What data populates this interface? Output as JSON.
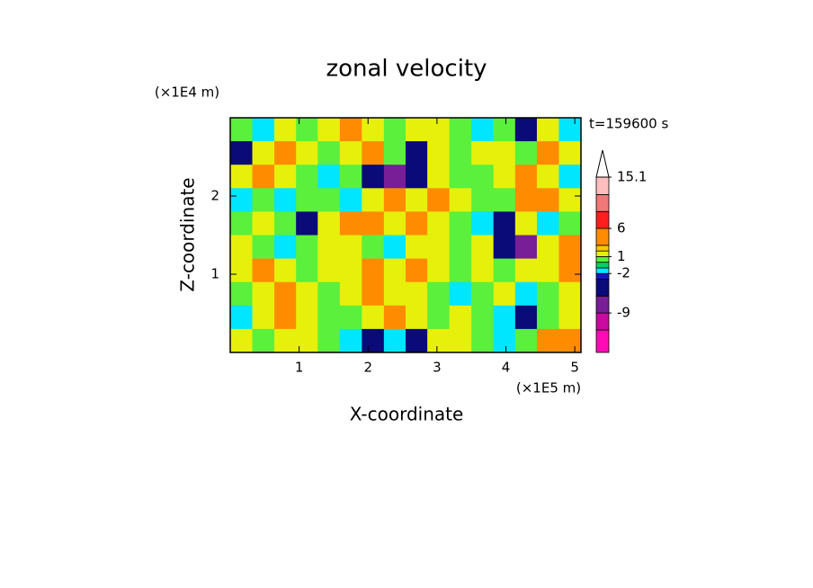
{
  "chart_data": {
    "type": "contour",
    "title": "zonal velocity",
    "x_label": "X-coordinate",
    "y_label": "Z-coordinate",
    "x_unit_label": "(×1E5 m)",
    "y_unit_label": "(×1E4 m)",
    "annotation": "t=159600 s",
    "x": [
      0.16,
      0.48,
      0.8,
      1.11,
      1.43,
      1.75,
      2.07,
      2.39,
      2.7,
      3.02,
      3.34,
      3.66,
      3.98,
      4.29,
      4.61,
      4.93
    ],
    "y": [
      2.85,
      2.55,
      2.25,
      1.95,
      1.65,
      1.35,
      1.05,
      0.75,
      0.45,
      0.15
    ],
    "z": [
      [
        0,
        -1.5,
        1.5,
        0,
        1.5,
        4,
        1.5,
        0,
        1.5,
        1.5,
        0,
        -1.5,
        0,
        -4,
        1.5,
        -1.5
      ],
      [
        -4,
        1.5,
        4,
        1.5,
        0,
        1.5,
        4,
        0,
        -4,
        1.5,
        0,
        1.5,
        1.5,
        0,
        4,
        1.5
      ],
      [
        1.5,
        4,
        1.5,
        0,
        -1.5,
        0,
        -4,
        -7,
        -4,
        1.5,
        0,
        0,
        1.5,
        4,
        1.5,
        -1.5
      ],
      [
        -1.5,
        0,
        -1.5,
        0,
        0,
        -1.5,
        1.5,
        4,
        1.5,
        4,
        1.5,
        0,
        0,
        4,
        4,
        1.5
      ],
      [
        0,
        1.5,
        0,
        -4,
        1.5,
        4,
        4,
        1.5,
        4,
        1.5,
        0,
        -1.5,
        -4,
        1.5,
        -1.5,
        0
      ],
      [
        1.5,
        0,
        -1.5,
        0,
        1.5,
        1.5,
        0,
        -1.5,
        1.5,
        1.5,
        0,
        1.5,
        -4,
        -7,
        1.5,
        4
      ],
      [
        1.5,
        4,
        1.5,
        0,
        1.5,
        1.5,
        4,
        1.5,
        4,
        1.5,
        0,
        1.5,
        0,
        1.5,
        1.5,
        4
      ],
      [
        0,
        1.5,
        4,
        1.5,
        0,
        1.5,
        4,
        1.5,
        1.5,
        0,
        -1.5,
        0,
        1.5,
        -1.5,
        0,
        1.5
      ],
      [
        -1.5,
        1.5,
        4,
        1.5,
        0,
        0,
        1.5,
        4,
        1.5,
        0,
        1.5,
        0,
        -1.5,
        -4,
        0,
        1.5
      ],
      [
        1.5,
        0,
        1.5,
        1.5,
        0,
        -1.5,
        -4,
        -1.5,
        -4,
        1.5,
        1.5,
        0,
        -1.5,
        0,
        4,
        4
      ]
    ],
    "xlim": [
      0,
      5.09
    ],
    "ylim": [
      0,
      3
    ],
    "xticks": [
      1,
      2,
      3,
      4,
      5
    ],
    "yticks": [
      1,
      2
    ],
    "colorbar": {
      "levels": [
        -16,
        -12,
        -9,
        -6,
        -3,
        -2,
        -1,
        0,
        1,
        2,
        3,
        6,
        9,
        12,
        15.1
      ],
      "colors": [
        "#ff0ab4",
        "#c80aa0",
        "#781e96",
        "#0a0a78",
        "#1414c8",
        "#00e6ff",
        "#00d264",
        "#5af03c",
        "#e6f00a",
        "#ffc800",
        "#ff8c00",
        "#ff1e1e",
        "#f07878",
        "#ffbebe"
      ],
      "ticks": [
        -9,
        -2,
        1,
        6,
        15.1
      ],
      "extend": "max"
    }
  }
}
